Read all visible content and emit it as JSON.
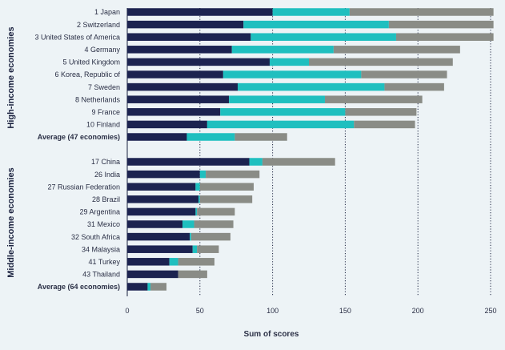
{
  "chart_data": {
    "type": "bar",
    "stacked": true,
    "orientation": "horizontal",
    "xlabel": "Sum of scores",
    "xlim": [
      0,
      250
    ],
    "xticks": [
      0,
      50,
      100,
      150,
      200,
      250
    ],
    "grid": "dotted vertical",
    "colors": [
      "#1c2350",
      "#1fbfbf",
      "#8a8c86"
    ],
    "groups": [
      {
        "title": "High-income economies",
        "rows": [
          {
            "label": "1 Japan",
            "values": [
              100,
              53,
              99
            ],
            "bold": false
          },
          {
            "label": "2 Switzerland",
            "values": [
              80,
              100,
              72
            ],
            "bold": false
          },
          {
            "label": "3 United States of America",
            "values": [
              85,
              100,
              67
            ],
            "bold": false
          },
          {
            "label": "4 Germany",
            "values": [
              72,
              70,
              87
            ],
            "bold": false
          },
          {
            "label": "5 United Kingdom",
            "values": [
              98,
              27,
              99
            ],
            "bold": false
          },
          {
            "label": "6 Korea, Republic of",
            "values": [
              66,
              95,
              59
            ],
            "bold": false
          },
          {
            "label": "7 Sweden",
            "values": [
              76,
              101,
              41
            ],
            "bold": false
          },
          {
            "label": "8 Netherlands",
            "values": [
              70,
              66,
              67
            ],
            "bold": false
          },
          {
            "label": "9 France",
            "values": [
              64,
              86,
              49
            ],
            "bold": false
          },
          {
            "label": "10 Finland",
            "values": [
              55,
              101,
              42
            ],
            "bold": false
          },
          {
            "label": "Average (47 economies)",
            "values": [
              41,
              33,
              36
            ],
            "bold": true
          }
        ]
      },
      {
        "title": "Middle-income economies",
        "rows": [
          {
            "label": "17 China",
            "values": [
              84,
              9,
              50
            ],
            "bold": false
          },
          {
            "label": "26 India",
            "values": [
              50,
              4,
              37
            ],
            "bold": false
          },
          {
            "label": "27 Russian Federation",
            "values": [
              47,
              3,
              37
            ],
            "bold": false
          },
          {
            "label": "28 Brazil",
            "values": [
              49,
              1,
              36
            ],
            "bold": false
          },
          {
            "label": "29 Argentina",
            "values": [
              47,
              1,
              26
            ],
            "bold": false
          },
          {
            "label": "31 Mexico",
            "values": [
              38,
              8,
              27
            ],
            "bold": false
          },
          {
            "label": "32 South Africa",
            "values": [
              43,
              1,
              27
            ],
            "bold": false
          },
          {
            "label": "34 Malaysia",
            "values": [
              45,
              3,
              15
            ],
            "bold": false
          },
          {
            "label": "41 Turkey",
            "values": [
              29,
              6,
              25
            ],
            "bold": false
          },
          {
            "label": "43 Thailand",
            "values": [
              35,
              0,
              20
            ],
            "bold": false
          },
          {
            "label": "Average (64 economies)",
            "values": [
              14,
              2,
              11
            ],
            "bold": true
          }
        ]
      }
    ]
  }
}
